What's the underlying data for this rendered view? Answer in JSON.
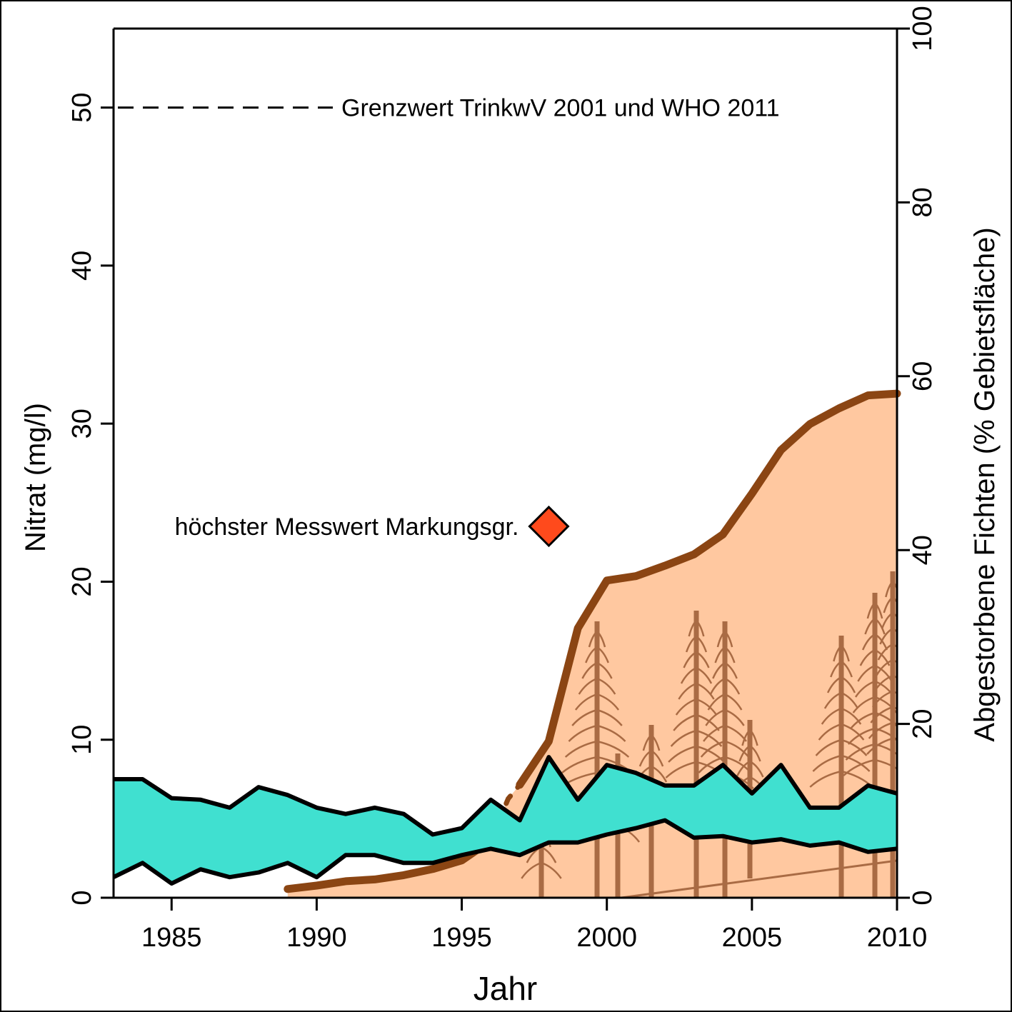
{
  "chart_data": {
    "type": "area",
    "xlabel": "Jahr",
    "ylabel": "Nitrat (mg/l)",
    "y2label": "Abgestorbene Fichten (% Gebietsfläche)",
    "xlim": [
      1983,
      2010
    ],
    "ylim": [
      0,
      55
    ],
    "y2lim": [
      0,
      100
    ],
    "xticks": [
      "1985",
      "1990",
      "1995",
      "2000",
      "2005",
      "2010"
    ],
    "yticks": [
      "0",
      "10",
      "20",
      "30",
      "40",
      "50"
    ],
    "y2ticks": [
      "0",
      "20",
      "40",
      "60",
      "80",
      "100"
    ],
    "series": [
      {
        "axis": "y",
        "x": [
          1983,
          1984,
          1985,
          1986,
          1987,
          1988,
          1989,
          1990,
          1991,
          1992,
          1993,
          1994,
          1995,
          1996,
          1997,
          1998,
          1999,
          2000,
          2001,
          2002,
          2003,
          2004,
          2005,
          2006,
          2007,
          2008,
          2009,
          2010
        ],
        "upper": [
          7.5,
          7.5,
          6.3,
          6.2,
          5.7,
          7.0,
          6.5,
          5.7,
          5.3,
          5.7,
          5.3,
          4.0,
          4.4,
          6.2,
          4.9,
          8.9,
          6.2,
          8.4,
          7.9,
          7.1,
          7.1,
          8.4,
          6.6,
          8.4,
          5.7,
          5.7,
          7.1,
          6.6
        ],
        "lower": [
          1.3,
          2.2,
          0.9,
          1.8,
          1.3,
          1.6,
          2.2,
          1.3,
          2.7,
          2.7,
          2.2,
          2.2,
          2.7,
          3.1,
          2.7,
          3.5,
          3.5,
          4.0,
          4.4,
          4.9,
          3.8,
          3.9,
          3.5,
          3.7,
          3.3,
          3.5,
          2.9,
          3.1
        ],
        "color": "#40E0D0"
      },
      {
        "axis": "y2",
        "x": [
          1989,
          1990,
          1991,
          1992,
          1993,
          1994,
          1995,
          1996,
          1996.6,
          1997,
          1998,
          1999,
          2000,
          2001,
          2002,
          2003,
          2004,
          2005,
          2006,
          2007,
          2008,
          2009,
          2010
        ],
        "values": [
          1,
          1.4,
          1.9,
          2.1,
          2.6,
          3.3,
          4.3,
          6.6,
          11.4,
          13,
          18,
          31,
          36.5,
          37,
          38.2,
          39.5,
          41.8,
          46.5,
          51.5,
          54.5,
          56.3,
          57.8,
          58
        ],
        "color": "#8B4513",
        "fill": "#FFC8A0"
      }
    ],
    "reference_line": {
      "y": 50,
      "style": "dashed",
      "label": "Grenzwert TrinkwV 2001 und WHO 2011"
    },
    "point": {
      "x": 1998,
      "y": 23.5,
      "label": "höchster Messwert Markungsgr.",
      "color": "#FF4A1C"
    }
  }
}
